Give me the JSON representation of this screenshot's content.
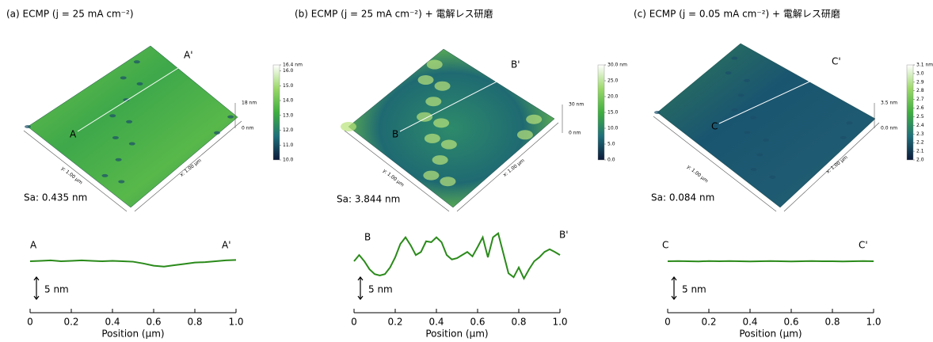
{
  "chart_data": [
    {
      "type": "line",
      "title": "(a) ECMP (j = 25 mA cm⁻²)",
      "color": "#2a8a1a",
      "image": {
        "sa": "Sa: 0.435 nm",
        "x_axis_label": "x: 1.00 µm",
        "y_axis_label": "y: 1.00 µm",
        "z_scale": [
          "18 nm",
          "0 nm"
        ],
        "start_label": "A",
        "end_label": "A'",
        "colorbar": {
          "lim": [
            10,
            16.4
          ],
          "colors": [
            "#0b1a3a",
            "#1f6f7a",
            "#3fae3f",
            "#9bd86a",
            "#ffffff"
          ],
          "ticks": [
            {
              "value": 16.4,
              "label": "16.4 nm"
            },
            {
              "value": 16,
              "label": "16.0"
            },
            {
              "value": 15,
              "label": "15.0"
            },
            {
              "value": 14,
              "label": "14.0"
            },
            {
              "value": 13,
              "label": "13.0"
            },
            {
              "value": 12,
              "label": "12.0"
            },
            {
              "value": 11,
              "label": "11.0"
            },
            {
              "value": 10,
              "label": "10.0"
            }
          ]
        }
      },
      "xlabel": "Position (µm)",
      "xlim": [
        0,
        1
      ],
      "ylim": [
        -5,
        7.5
      ],
      "xticks": [
        0,
        0.2,
        0.4,
        0.6,
        0.8,
        {
          "value": 1,
          "label": "1.0"
        }
      ],
      "scale_bar": {
        "value": 5,
        "label": "5 nm"
      },
      "x": [
        0,
        0.05,
        0.1,
        0.15,
        0.2,
        0.25,
        0.3,
        0.35,
        0.4,
        0.45,
        0.5,
        0.55,
        0.6,
        0.65,
        0.7,
        0.75,
        0.8,
        0.85,
        0.9,
        0.95,
        1
      ],
      "values": [
        0,
        0.1,
        0.2,
        0,
        0.1,
        0.2,
        0.1,
        0,
        0.1,
        0,
        -0.1,
        -0.5,
        -1.0,
        -1.2,
        -0.9,
        -0.6,
        -0.3,
        -0.2,
        0,
        0.2,
        0.3
      ]
    },
    {
      "type": "line",
      "title": "(b) ECMP (j = 25 mA cm⁻²) + 電解レス研磨",
      "color": "#2a8a1a",
      "image": {
        "sa": "Sa: 3.844 nm",
        "x_axis_label": "x: 1.00 µm",
        "y_axis_label": "y: 1.00 µm",
        "z_scale": [
          "30 nm",
          "0 nm"
        ],
        "start_label": "B",
        "end_label": "B'",
        "colorbar": {
          "lim": [
            0,
            30
          ],
          "colors": [
            "#0b1a3a",
            "#1f6f7a",
            "#3fae3f",
            "#9bd86a",
            "#ffffff"
          ],
          "ticks": [
            {
              "value": 30,
              "label": "30.0 nm"
            },
            {
              "value": 25,
              "label": "25.0"
            },
            {
              "value": 20,
              "label": "20.0"
            },
            {
              "value": 15,
              "label": "15.0"
            },
            {
              "value": 10,
              "label": "10.0"
            },
            {
              "value": 5,
              "label": "5.0"
            },
            {
              "value": 0,
              "label": "0.0"
            }
          ]
        }
      },
      "xlabel": "Position (µm)",
      "xlim": [
        0,
        1
      ],
      "ylim": [
        -5,
        7.5
      ],
      "xticks": [
        0,
        0.2,
        0.4,
        0.6,
        0.8,
        {
          "value": 1,
          "label": "1.0"
        }
      ],
      "scale_bar": {
        "value": 5,
        "label": "5 nm"
      },
      "x": [
        0,
        0.025,
        0.05,
        0.075,
        0.1,
        0.125,
        0.15,
        0.175,
        0.2,
        0.225,
        0.25,
        0.275,
        0.3,
        0.325,
        0.35,
        0.375,
        0.4,
        0.425,
        0.45,
        0.475,
        0.5,
        0.525,
        0.55,
        0.575,
        0.6,
        0.625,
        0.65,
        0.675,
        0.7,
        0.725,
        0.75,
        0.775,
        0.8,
        0.825,
        0.85,
        0.875,
        0.9,
        0.925,
        0.95,
        0.975,
        1
      ],
      "values": [
        0,
        1.4,
        0,
        -1.8,
        -2.9,
        -3.2,
        -2.9,
        -1.4,
        0.9,
        3.9,
        5.4,
        3.6,
        1.4,
        2.1,
        4.5,
        4.3,
        5.4,
        4.3,
        1.4,
        0.4,
        0.7,
        1.4,
        2.1,
        1.1,
        3.2,
        5.4,
        0.9,
        5.4,
        6.3,
        1.8,
        -2.7,
        -3.6,
        -1.4,
        -3.9,
        -1.8,
        0,
        0.9,
        2.1,
        2.7,
        2.1,
        1.4
      ]
    },
    {
      "type": "line",
      "title": "(c) ECMP (j = 0.05 mA cm⁻²) + 電解レス研磨",
      "color": "#2a8a1a",
      "image": {
        "sa": "Sa: 0.084 nm",
        "x_axis_label": "x: 1.00 µm",
        "y_axis_label": "y: 1.00 µm",
        "z_scale": [
          "3.5 nm",
          "0.0 nm"
        ],
        "start_label": "C",
        "end_label": "C'",
        "colorbar": {
          "lim": [
            2,
            3.1
          ],
          "colors": [
            "#0b1a3a",
            "#1f6f7a",
            "#3fae3f",
            "#9bd86a",
            "#ffffff"
          ],
          "ticks": [
            {
              "value": 3.1,
              "label": "3.1 nm"
            },
            {
              "value": 3,
              "label": "3.0"
            },
            2.9,
            2.8,
            2.7,
            2.6,
            2.5,
            2.4,
            2.3,
            2.2,
            2.1,
            {
              "value": 2,
              "label": "2.0"
            }
          ]
        }
      },
      "xlabel": "Position (µm)",
      "xlim": [
        0,
        1
      ],
      "ylim": [
        -5,
        7.5
      ],
      "xticks": [
        0,
        0.2,
        0.4,
        0.6,
        0.8,
        {
          "value": 1,
          "label": "1.0"
        }
      ],
      "scale_bar": {
        "value": 5,
        "label": "5 nm"
      },
      "x": [
        0,
        0.05,
        0.1,
        0.15,
        0.2,
        0.25,
        0.3,
        0.35,
        0.4,
        0.45,
        0.5,
        0.55,
        0.6,
        0.65,
        0.7,
        0.75,
        0.8,
        0.85,
        0.9,
        0.95,
        1
      ],
      "values": [
        0,
        0.05,
        0,
        -0.05,
        0.05,
        0,
        0.05,
        0,
        -0.05,
        0,
        0.05,
        0,
        -0.05,
        0,
        0.05,
        0,
        0,
        -0.05,
        0,
        0.05,
        0
      ]
    }
  ]
}
